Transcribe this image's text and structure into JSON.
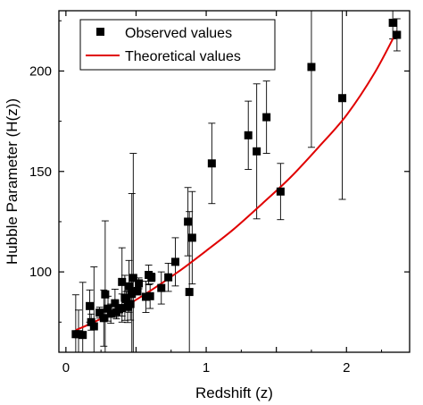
{
  "chart_data": {
    "type": "scatter",
    "xlabel": "Redshift (z)",
    "ylabel": "Hubble Parameter (H(z))",
    "xlim": [
      -0.05,
      2.45
    ],
    "ylim": [
      60,
      230
    ],
    "x_ticks": [
      0,
      0.5,
      1,
      1.5,
      2
    ],
    "x_tick_labels": [
      "0",
      "",
      "1",
      "",
      "2"
    ],
    "y_ticks": [
      100,
      150,
      200
    ],
    "y_tick_labels": [
      "100",
      "150",
      "200"
    ],
    "legend_position": "top-left",
    "legend": [
      {
        "label": "Observed values",
        "marker": "square",
        "color": "#000000"
      },
      {
        "label": "Theoretical values",
        "marker": "line",
        "color": "#e00000"
      }
    ],
    "series": [
      {
        "name": "Observed values",
        "type": "errorbar",
        "color": "#000000",
        "x": [
          0.07,
          0.09,
          0.12,
          0.17,
          0.18,
          0.2,
          0.24,
          0.27,
          0.28,
          0.3,
          0.32,
          0.35,
          0.36,
          0.38,
          0.4,
          0.4,
          0.42,
          0.43,
          0.44,
          0.45,
          0.46,
          0.47,
          0.48,
          0.51,
          0.52,
          0.57,
          0.59,
          0.6,
          0.61,
          0.68,
          0.73,
          0.78,
          0.87,
          0.88,
          0.9,
          1.04,
          1.3,
          1.36,
          1.43,
          1.53,
          1.75,
          1.97,
          2.33,
          2.36
        ],
        "y": [
          69,
          69,
          68.6,
          83,
          75,
          72.9,
          79.7,
          77,
          88.8,
          81.7,
          79.2,
          84.4,
          79.9,
          81.5,
          95,
          82,
          87.1,
          86.5,
          82.6,
          92.8,
          84,
          89,
          97,
          90.4,
          94.3,
          87.6,
          98.5,
          87.9,
          97.3,
          92,
          97.3,
          105,
          125,
          90,
          117,
          154,
          168,
          160,
          177,
          140,
          202,
          186.5,
          224,
          218
        ],
        "yerr": [
          19.6,
          12,
          26.2,
          8,
          4,
          29.6,
          2.7,
          14,
          36.6,
          6.2,
          4.8,
          7,
          3.3,
          1.9,
          17,
          7,
          11.2,
          3.7,
          7.8,
          12.9,
          8,
          50,
          62,
          1.9,
          2.7,
          7.8,
          4.9,
          6.1,
          2.1,
          8,
          7,
          12,
          17,
          40,
          23,
          20,
          17,
          33.6,
          18,
          14,
          40,
          50.4,
          8,
          8
        ]
      },
      {
        "name": "Theoretical values",
        "type": "line",
        "color": "#e00000",
        "x": [
          0.07,
          0.2,
          0.4,
          0.6,
          0.8,
          1.0,
          1.2,
          1.4,
          1.6,
          1.8,
          2.0,
          2.2,
          2.36
        ],
        "y": [
          71,
          75,
          82,
          90.5,
          100,
          110.5,
          121.5,
          134,
          147,
          162,
          178,
          199,
          220
        ]
      }
    ]
  }
}
